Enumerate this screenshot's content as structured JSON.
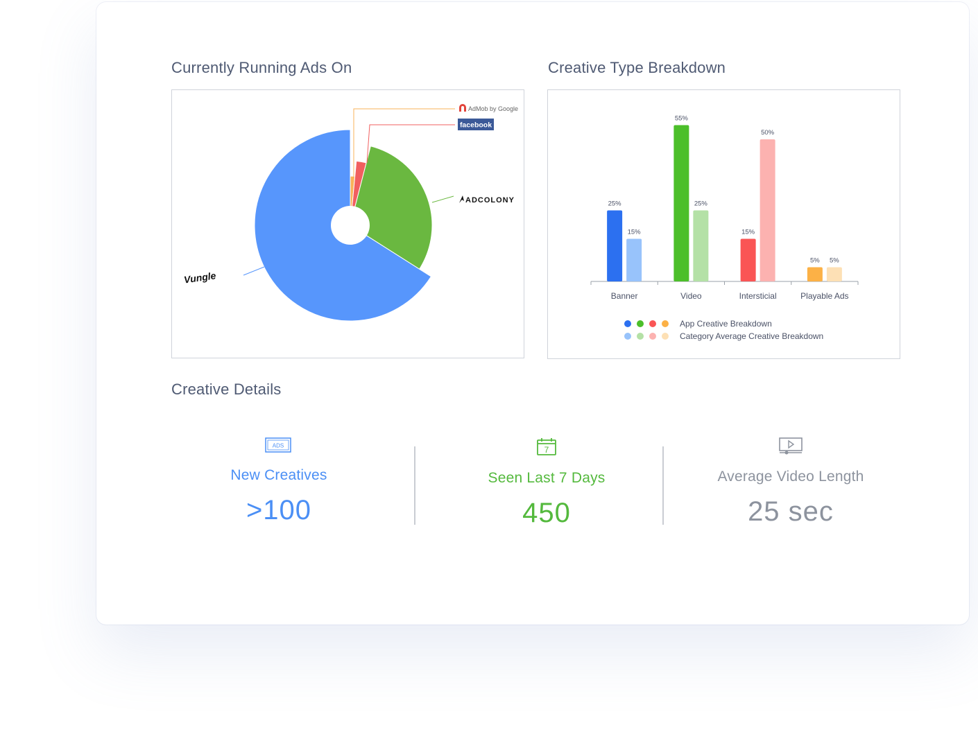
{
  "titles": {
    "running": "Currently Running Ads On",
    "breakdown": "Creative Type Breakdown",
    "details": "Creative Details"
  },
  "chart_data": [
    {
      "type": "pie",
      "title": "Currently Running Ads On",
      "slices": [
        {
          "label": "AdMob by Google",
          "value": 1.5,
          "color": "#f9b35a"
        },
        {
          "label": "facebook",
          "value": 2.5,
          "color": "#f15f5f"
        },
        {
          "label": "ADCOLONY",
          "value": 30,
          "color": "#6ab840"
        },
        {
          "label": "Vungle",
          "value": 66,
          "color": "#5796fc"
        }
      ]
    },
    {
      "type": "bar",
      "title": "Creative Type Breakdown",
      "categories": [
        "Banner",
        "Video",
        "Intersticial",
        "Playable Ads"
      ],
      "series": [
        {
          "name": "App Creative Breakdown",
          "values": [
            25,
            55,
            15,
            5
          ],
          "colors": [
            "#2c70f0",
            "#4cbf2a",
            "#fa5555",
            "#fcb146"
          ]
        },
        {
          "name": "Category Average Creative Breakdown",
          "values": [
            15,
            25,
            50,
            5
          ],
          "colors": [
            "#98c3fb",
            "#b4e1a6",
            "#fcb2b0",
            "#fde0b5"
          ]
        }
      ],
      "value_suffix": "%",
      "ylim": [
        0,
        60
      ],
      "legend_position": "bottom"
    }
  ],
  "stats": [
    {
      "label": "New Creatives",
      "value": ">100",
      "color": "#4b8ff5",
      "icon": "ads-icon",
      "icon_text": "ADS"
    },
    {
      "label": "Seen Last 7 Days",
      "value": "450",
      "color": "#54b93d",
      "icon": "calendar-icon",
      "icon_text": "7"
    },
    {
      "label": "Average Video Length",
      "value": "25 sec",
      "color": "#8d939e",
      "icon": "video-player-icon"
    }
  ]
}
